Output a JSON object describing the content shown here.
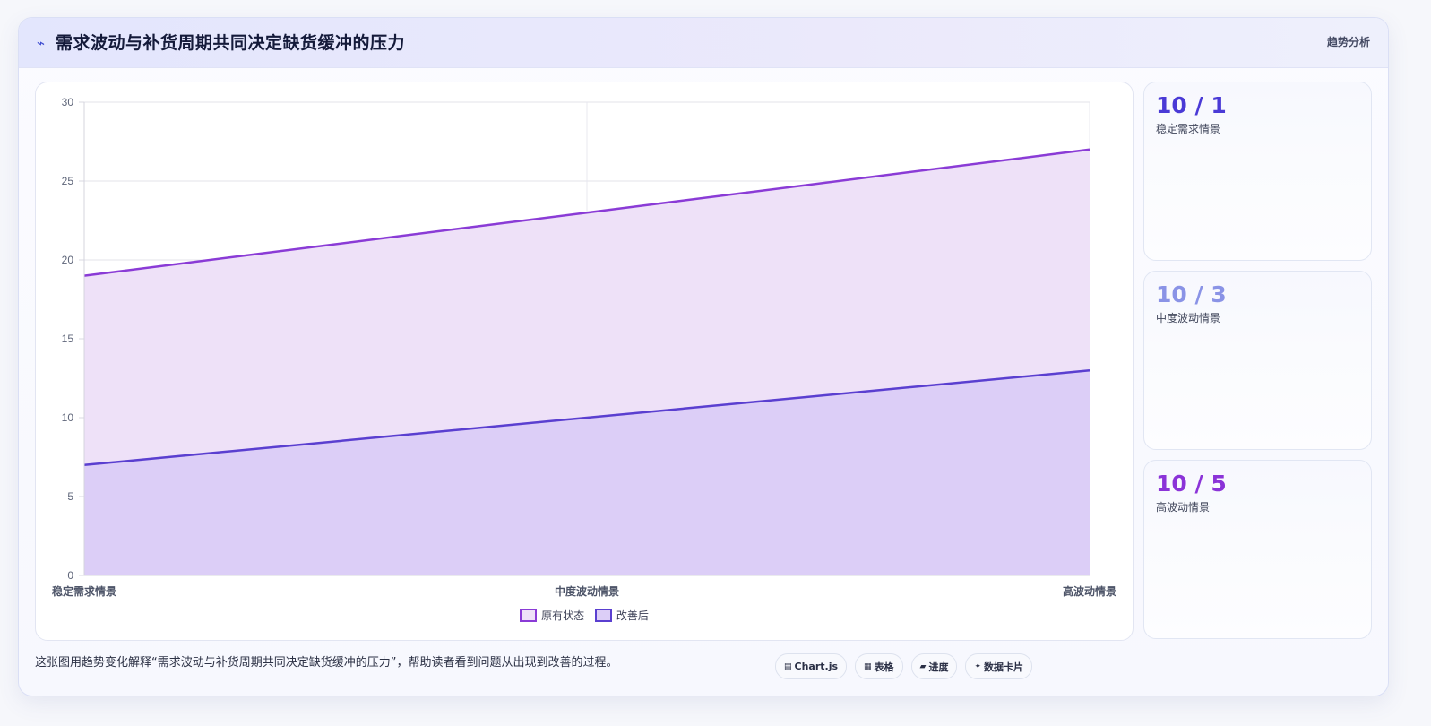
{
  "header": {
    "icon": "lightning-icon",
    "title": "需求波动与补货周期共同决定缺货缓冲的压力",
    "tag": "趋势分析"
  },
  "chart_data": {
    "type": "area",
    "categories": [
      "稳定需求情景",
      "中度波动情景",
      "高波动情景"
    ],
    "series": [
      {
        "name": "原有状态",
        "values": [
          19,
          23,
          27
        ],
        "color": "#8a3bd6",
        "fill": "#eee1f8"
      },
      {
        "name": "改善后",
        "values": [
          7,
          10,
          13
        ],
        "color": "#5a3fd0",
        "fill": "#dccef7"
      }
    ],
    "ylim": [
      0,
      30
    ],
    "yticks": [
      0,
      5,
      10,
      15,
      20,
      25,
      30
    ],
    "grid": true,
    "legend": "bottom"
  },
  "stats": [
    {
      "value": "10 / 1",
      "label": "稳定需求情景",
      "color": "#4a3ad6"
    },
    {
      "value": "10 / 3",
      "label": "中度波动情景",
      "color": "#8a93e6"
    },
    {
      "value": "10 / 5",
      "label": "高波动情景",
      "color": "#8b33d8"
    }
  ],
  "caption": "这张图用趋势变化解释“需求波动与补货周期共同决定缺货缓冲的压力”，帮助读者看到问题从出现到改善的过程。",
  "pills": [
    {
      "icon": "chart-icon",
      "glyph": "▤",
      "label": "Chart.js"
    },
    {
      "icon": "table-icon",
      "glyph": "▦",
      "label": "表格"
    },
    {
      "icon": "progress-icon",
      "glyph": "▰",
      "label": "进度"
    },
    {
      "icon": "sparkle-icon",
      "glyph": "✦",
      "label": "数据卡片"
    }
  ]
}
